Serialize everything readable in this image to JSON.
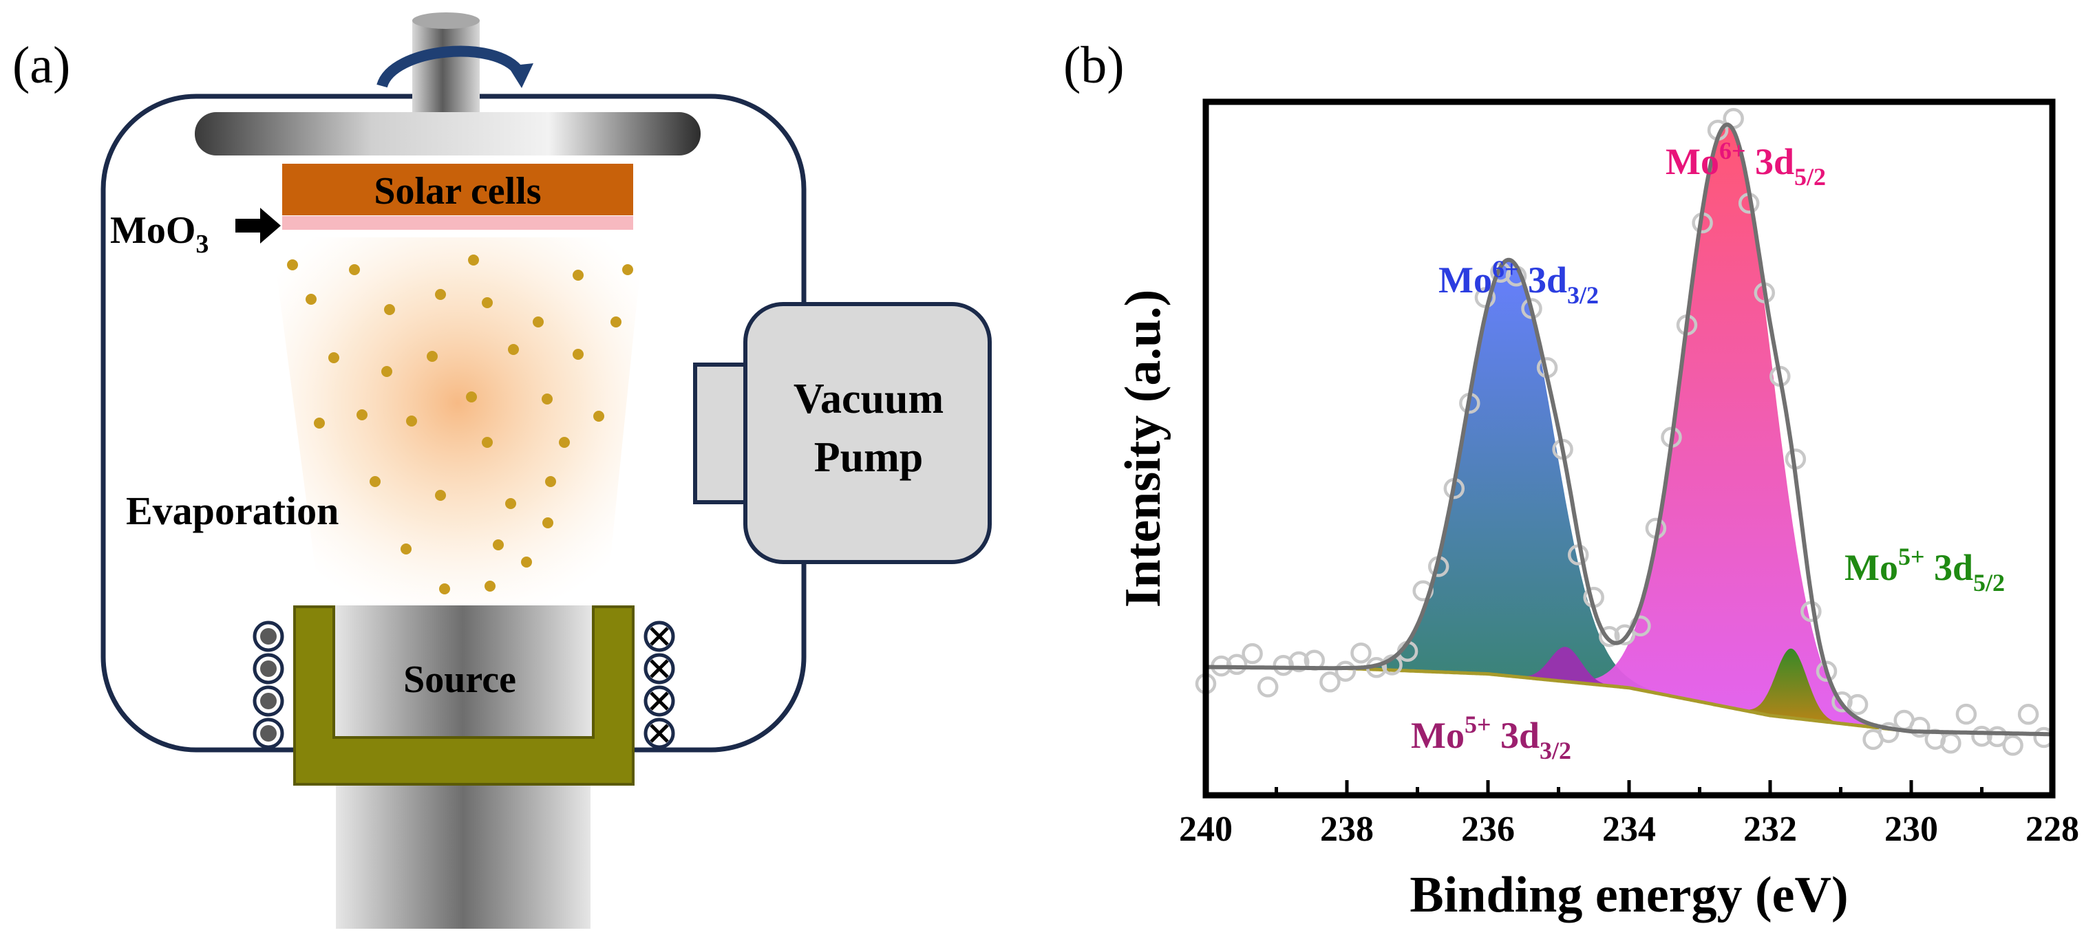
{
  "panel_a": {
    "label": "(a)",
    "solar_cells": "Solar cells",
    "moo3_main": "MoO",
    "moo3_sub": "3",
    "evaporation": "Evaporation",
    "vacuum_line1": "Vacuum",
    "vacuum_line2": "Pump",
    "source": "Source",
    "colors": {
      "chamber_stroke": "#1b2a4a",
      "solar_cells": "#c8610a",
      "moo3_layer": "#f7b9c0",
      "crucible": "#85840a",
      "particles": "#c89b1f",
      "plume": "#f4a35c",
      "pump_fill": "#d9d9d9",
      "rotation_arrow": "#1f3f73"
    }
  },
  "chart_data": {
    "type": "line",
    "panel_label": "(b)",
    "xlabel": "Binding energy (eV)",
    "ylabel": "Intensity (a.u.)",
    "xlim": [
      240,
      228
    ],
    "ylim": [
      0,
      1
    ],
    "x_ticks": [
      240,
      238,
      236,
      234,
      232,
      230,
      228
    ],
    "baseline": {
      "x": [
        240,
        238,
        236,
        234,
        232,
        230,
        228
      ],
      "y": [
        0.185,
        0.183,
        0.175,
        0.155,
        0.115,
        0.092,
        0.088
      ]
    },
    "peaks": [
      {
        "name": "Mo6+ 3d3/2",
        "center": 235.7,
        "height": 0.6,
        "sigma": 0.62,
        "color_top": "#5f78ff",
        "color_bottom": "#2e7d6a"
      },
      {
        "name": "Mo6+ 3d5/2",
        "center": 232.6,
        "height": 0.84,
        "sigma": 0.62,
        "color_top": "#ff4d6d",
        "color_bottom": "#e05cf0"
      },
      {
        "name": "Mo5+ 3d3/2",
        "center": 234.9,
        "height": 0.05,
        "sigma": 0.22,
        "color_top": "#9b2fb0",
        "color_bottom": "#9b2fb0"
      },
      {
        "name": "Mo5+ 3d5/2",
        "center": 231.7,
        "height": 0.1,
        "sigma": 0.22,
        "color_top": "#2e8b1e",
        "color_bottom": "#b8860b"
      }
    ],
    "series": [
      {
        "name": "Envelope fit",
        "color": "#707070"
      },
      {
        "name": "Measured data",
        "color": "#c8c8c8",
        "marker": "open-circle"
      }
    ],
    "annotations": [
      {
        "ion": "Mo",
        "charge": "6+",
        "orbital": "3d",
        "spin": "3/2",
        "color": "#2b3de0"
      },
      {
        "ion": "Mo",
        "charge": "6+",
        "orbital": "3d",
        "spin": "5/2",
        "color": "#e8147a"
      },
      {
        "ion": "Mo",
        "charge": "5+",
        "orbital": "3d",
        "spin": "5/2",
        "color": "#1f8a12"
      },
      {
        "ion": "Mo",
        "charge": "5+",
        "orbital": "3d",
        "spin": "3/2",
        "color": "#9c1f6e"
      }
    ]
  }
}
